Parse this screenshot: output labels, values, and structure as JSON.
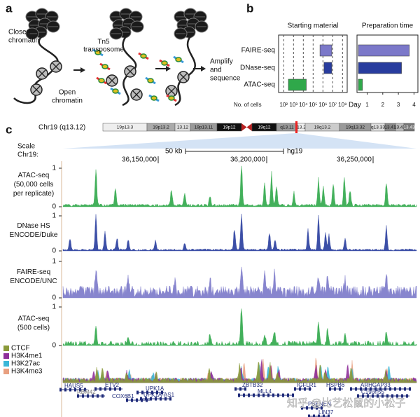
{
  "panels": {
    "a": "a",
    "b": "b",
    "c": "c"
  },
  "panel_a": {
    "closed_chromatin": [
      "Closed",
      "chromatin"
    ],
    "transposome": [
      "Tn5",
      "transposome"
    ],
    "open_chromatin": [
      "Open",
      "chromatin"
    ],
    "amplify": [
      "Amplify",
      "and",
      "sequence"
    ]
  },
  "panel_b": {
    "assays": [
      "FAIRE-seq",
      "DNase-seq",
      "ATAC-seq"
    ],
    "colors": [
      "#7b78c9",
      "#283c9e",
      "#2fa84a"
    ],
    "starting_material": {
      "type": "bar",
      "title": "Starting material",
      "axis_label": "No. of cells",
      "log_scale": true,
      "grid": true,
      "xlim": [
        30,
        300000000
      ],
      "xticks": [
        {
          "value": 100,
          "label": "10²"
        },
        {
          "value": 1000,
          "label": "10³"
        },
        {
          "value": 10000,
          "label": "10⁴"
        },
        {
          "value": 100000,
          "label": "10⁵"
        },
        {
          "value": 1000000,
          "label": "10⁶"
        },
        {
          "value": 10000000,
          "label": "10⁷"
        },
        {
          "value": 100000000,
          "label": "10⁸"
        }
      ],
      "ranges": [
        [
          500000,
          8000000
        ],
        [
          1300000,
          8000000
        ],
        [
          300,
          20000
        ]
      ]
    },
    "preparation_time": {
      "type": "bar",
      "title": "Preparation time",
      "axis_label": "Day",
      "xlim": [
        0.35,
        4.25
      ],
      "xticks": [
        1,
        2,
        3,
        4
      ],
      "values": [
        3.7,
        3.2,
        0.7
      ]
    }
  },
  "panel_c": {
    "region": "Chr19 (q13.12)",
    "bands": [
      "19p13.3",
      "19p13.2",
      "13.12",
      "19p13.11",
      "19p12",
      "19q12",
      "q13.11",
      "13.2",
      "19q13.2",
      "19q13.32",
      "q13.33",
      "13.41",
      "13.42",
      "13.43"
    ],
    "scale_label": [
      "Scale",
      "Chr19:"
    ],
    "scale_bar": "50 kb",
    "assembly": "hg19",
    "coordinates": [
      "36,150,000",
      "36,200,000",
      "36,250,000"
    ],
    "tracks": [
      {
        "label": [
          "ATAC-seq",
          "(50,000 cells",
          "per replicate)"
        ],
        "color": "#2fa84a",
        "ylim": [
          0,
          1
        ],
        "yticks": [
          0,
          1
        ]
      },
      {
        "label": [
          "DNase HS",
          "ENCODE/Duke"
        ],
        "color": "#283c9e",
        "ylim": [
          0,
          1
        ],
        "yticks": [
          0,
          1
        ]
      },
      {
        "label": [
          "FAIRE-seq",
          "ENCODE/UNC"
        ],
        "color": "#7b78c9",
        "ylim": [
          0,
          1
        ],
        "yticks": [
          0,
          1
        ]
      },
      {
        "label": [
          "ATAC-seq",
          "(500 cells)"
        ],
        "color": "#2fa84a",
        "ylim": [
          0,
          1
        ],
        "yticks": [
          0,
          1
        ]
      }
    ],
    "legend": [
      {
        "name": "CTCF",
        "color": "#8a9a3a"
      },
      {
        "name": "H3K4me1",
        "color": "#8e2f9a"
      },
      {
        "name": "H3K27ac",
        "color": "#3ab7d8"
      },
      {
        "name": "H3K4me3",
        "color": "#e8a080"
      }
    ],
    "genes": [
      "HAUS5",
      "RBM42",
      "ETV2",
      "COX6B1",
      "UPK1A",
      "UPK1A-AS1",
      "ZBTB32",
      "MLL4",
      "IGFLR1",
      "HSPB6",
      "ARHGAP33",
      "C19orf55",
      "PSENEN",
      "LIN37"
    ],
    "watermark": "知乎 @比艺松鼠的小松子"
  }
}
